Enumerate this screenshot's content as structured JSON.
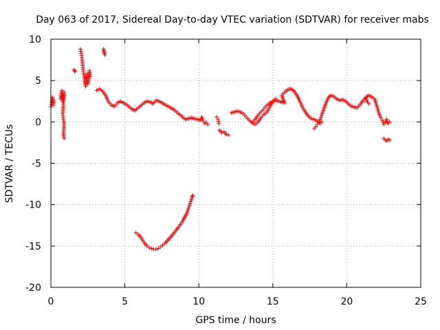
{
  "chart_data": {
    "type": "scatter",
    "title": "Day 063 of 2017, Sidereal Day-to-day VTEC variation (SDTVAR) for receiver mabs",
    "xlabel": "GPS time / hours",
    "ylabel": "SDTVAR / TECUs",
    "xlim": [
      0,
      25
    ],
    "ylim": [
      -20,
      10
    ],
    "xticks": [
      0,
      5,
      10,
      15,
      20,
      25
    ],
    "yticks": [
      -20,
      -15,
      -10,
      -5,
      0,
      5,
      10
    ],
    "grid": true,
    "marker": "+",
    "color": "#ff0000",
    "series": [
      {
        "name": "SDTVAR",
        "segments": [
          [
            [
              0.0,
              1.8
            ],
            [
              0.05,
              2.3
            ],
            [
              0.1,
              3.0
            ],
            [
              0.15,
              2.0
            ],
            [
              0.2,
              2.6
            ]
          ],
          [
            [
              0.65,
              2.8
            ],
            [
              0.7,
              3.4
            ],
            [
              0.75,
              3.8
            ],
            [
              0.8,
              2.5
            ],
            [
              0.85,
              3.2
            ],
            [
              0.9,
              3.6
            ],
            [
              0.8,
              1.0
            ],
            [
              0.85,
              0.3
            ],
            [
              0.9,
              -0.3
            ],
            [
              0.85,
              -1.6
            ],
            [
              0.9,
              -2.0
            ]
          ],
          [
            [
              1.55,
              6.3
            ],
            [
              1.6,
              6.1
            ],
            [
              1.65,
              6.2
            ]
          ],
          [
            [
              2.0,
              8.8
            ],
            [
              2.05,
              8.3
            ],
            [
              2.1,
              7.8
            ],
            [
              2.15,
              6.8
            ],
            [
              2.2,
              6.1
            ],
            [
              2.25,
              5.5
            ],
            [
              2.3,
              4.7
            ],
            [
              2.35,
              4.3
            ],
            [
              2.4,
              5.2
            ],
            [
              2.45,
              5.8
            ],
            [
              2.5,
              4.6
            ],
            [
              2.55,
              5.0
            ],
            [
              2.6,
              6.2
            ],
            [
              2.65,
              5.5
            ]
          ],
          [
            [
              3.55,
              8.8
            ],
            [
              3.6,
              8.3
            ],
            [
              3.65,
              8.1
            ],
            [
              3.6,
              8.6
            ]
          ],
          [
            [
              3.1,
              3.8
            ],
            [
              3.3,
              4.0
            ],
            [
              3.5,
              3.7
            ],
            [
              3.7,
              3.2
            ],
            [
              3.9,
              2.4
            ],
            [
              4.1,
              2.0
            ],
            [
              4.3,
              1.9
            ],
            [
              4.5,
              2.3
            ],
            [
              4.7,
              2.5
            ],
            [
              4.9,
              2.3
            ],
            [
              5.1,
              2.1
            ],
            [
              5.3,
              1.8
            ],
            [
              5.5,
              1.5
            ],
            [
              5.7,
              1.4
            ],
            [
              5.9,
              1.7
            ],
            [
              6.1,
              2.0
            ],
            [
              6.3,
              2.3
            ],
            [
              6.5,
              2.5
            ],
            [
              6.7,
              2.4
            ],
            [
              6.9,
              2.2
            ],
            [
              7.1,
              2.6
            ],
            [
              7.3,
              2.5
            ],
            [
              7.5,
              2.3
            ],
            [
              7.7,
              2.1
            ],
            [
              7.9,
              1.9
            ],
            [
              8.1,
              1.7
            ],
            [
              8.3,
              1.5
            ],
            [
              8.5,
              1.2
            ],
            [
              8.7,
              0.9
            ],
            [
              8.9,
              0.6
            ],
            [
              9.1,
              0.3
            ],
            [
              9.3,
              0.4
            ],
            [
              9.5,
              0.5
            ],
            [
              9.7,
              0.4
            ],
            [
              9.9,
              0.3
            ],
            [
              10.1,
              0.2
            ],
            [
              10.2,
              0.6
            ],
            [
              10.3,
              0.1
            ],
            [
              10.4,
              -0.2
            ],
            [
              10.5,
              -0.1
            ],
            [
              10.6,
              -0.3
            ]
          ],
          [
            [
              11.2,
              0.6
            ],
            [
              11.3,
              0.3
            ],
            [
              11.35,
              -0.2
            ]
          ],
          [
            [
              11.4,
              -1.0
            ],
            [
              11.55,
              -1.3
            ],
            [
              11.7,
              -1.2
            ],
            [
              11.85,
              -1.5
            ],
            [
              12.0,
              -1.6
            ]
          ],
          [
            [
              12.2,
              1.1
            ],
            [
              12.4,
              1.2
            ],
            [
              12.6,
              1.3
            ],
            [
              12.8,
              1.2
            ],
            [
              13.0,
              1.0
            ],
            [
              13.2,
              0.6
            ],
            [
              13.4,
              0.2
            ],
            [
              13.6,
              -0.1
            ],
            [
              13.8,
              -0.3
            ],
            [
              14.0,
              0.0
            ],
            [
              14.2,
              0.5
            ],
            [
              14.4,
              0.9
            ],
            [
              14.6,
              1.2
            ],
            [
              14.8,
              1.8
            ],
            [
              15.0,
              2.4
            ],
            [
              15.2,
              2.6
            ],
            [
              15.4,
              2.5
            ],
            [
              15.6,
              2.4
            ],
            [
              15.8,
              2.3
            ],
            [
              15.6,
              3.2
            ],
            [
              15.8,
              3.6
            ],
            [
              16.0,
              3.9
            ],
            [
              16.2,
              4.0
            ],
            [
              16.4,
              3.8
            ],
            [
              16.6,
              3.3
            ],
            [
              16.8,
              2.6
            ],
            [
              17.0,
              1.8
            ],
            [
              17.2,
              1.2
            ],
            [
              17.4,
              0.7
            ],
            [
              17.6,
              0.4
            ],
            [
              17.8,
              0.3
            ],
            [
              18.0,
              0.1
            ],
            [
              18.2,
              -0.2
            ],
            [
              18.3,
              0.0
            ]
          ],
          [
            [
              13.6,
              -0.1
            ],
            [
              13.8,
              0.3
            ],
            [
              14.0,
              0.8
            ],
            [
              14.2,
              1.2
            ],
            [
              14.4,
              1.6
            ],
            [
              14.6,
              2.0
            ],
            [
              14.8,
              2.3
            ],
            [
              15.0,
              2.5
            ],
            [
              15.2,
              2.8
            ]
          ],
          [
            [
              17.8,
              -0.8
            ],
            [
              17.9,
              -0.6
            ],
            [
              18.0,
              -0.3
            ],
            [
              18.1,
              -0.1
            ],
            [
              18.2,
              0.3
            ],
            [
              18.3,
              0.8
            ],
            [
              18.45,
              1.6
            ],
            [
              18.6,
              2.3
            ],
            [
              18.75,
              2.9
            ],
            [
              18.9,
              3.2
            ],
            [
              19.1,
              3.1
            ],
            [
              19.3,
              2.8
            ],
            [
              19.5,
              2.6
            ],
            [
              19.7,
              2.7
            ],
            [
              19.9,
              2.5
            ],
            [
              20.1,
              2.2
            ],
            [
              20.3,
              1.9
            ],
            [
              20.5,
              1.8
            ],
            [
              20.7,
              1.7
            ],
            [
              20.9,
              2.1
            ],
            [
              21.1,
              2.6
            ],
            [
              21.3,
              3.0
            ],
            [
              21.5,
              3.2
            ],
            [
              21.7,
              3.0
            ],
            [
              21.9,
              2.7
            ],
            [
              22.0,
              2.1
            ],
            [
              22.1,
              1.5
            ],
            [
              22.2,
              0.9
            ],
            [
              22.3,
              0.5
            ],
            [
              22.4,
              0.2
            ],
            [
              22.5,
              -0.3
            ],
            [
              22.6,
              -0.1
            ],
            [
              22.7,
              0.3
            ],
            [
              22.8,
              -0.2
            ],
            [
              22.9,
              0.0
            ]
          ],
          [
            [
              21.2,
              2.6
            ],
            [
              21.3,
              2.9
            ],
            [
              21.4,
              2.4
            ],
            [
              21.5,
              2.2
            ]
          ],
          [
            [
              22.5,
              -2.0
            ],
            [
              22.6,
              -2.2
            ],
            [
              22.7,
              -2.3
            ],
            [
              22.8,
              -2.1
            ],
            [
              22.9,
              -2.2
            ]
          ],
          [
            [
              5.75,
              -13.4
            ],
            [
              5.9,
              -13.6
            ],
            [
              6.05,
              -13.9
            ],
            [
              6.2,
              -14.3
            ],
            [
              6.35,
              -14.7
            ],
            [
              6.5,
              -15.0
            ],
            [
              6.65,
              -15.2
            ],
            [
              6.8,
              -15.3
            ],
            [
              6.95,
              -15.4
            ],
            [
              7.1,
              -15.4
            ],
            [
              7.25,
              -15.3
            ],
            [
              7.4,
              -15.1
            ],
            [
              7.55,
              -14.9
            ],
            [
              7.7,
              -14.7
            ],
            [
              7.85,
              -14.4
            ],
            [
              8.0,
              -14.1
            ],
            [
              8.15,
              -13.8
            ],
            [
              8.3,
              -13.5
            ],
            [
              8.45,
              -13.1
            ],
            [
              8.6,
              -12.8
            ],
            [
              8.75,
              -12.4
            ],
            [
              8.9,
              -12.0
            ],
            [
              9.05,
              -11.5
            ],
            [
              9.2,
              -11.0
            ],
            [
              9.3,
              -10.4
            ],
            [
              9.4,
              -9.9
            ],
            [
              9.5,
              -9.4
            ],
            [
              9.55,
              -9.0
            ],
            [
              9.6,
              -8.9
            ]
          ]
        ]
      }
    ]
  }
}
